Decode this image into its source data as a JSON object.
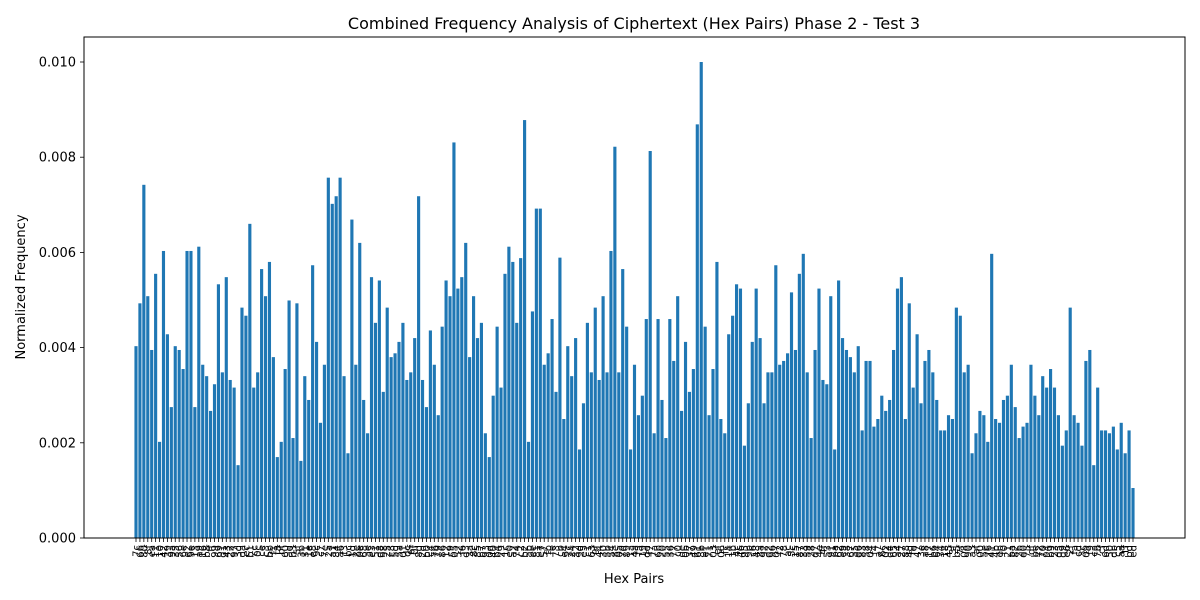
{
  "colors": {
    "bar": "#1f77b4",
    "axis": "#000000",
    "background": "#ffffff"
  },
  "chart_data": {
    "type": "bar",
    "title": "Combined Frequency Analysis of Ciphertext (Hex Pairs) Phase 2 - Test 3",
    "xlabel": "Hex Pairs",
    "ylabel": "Normalized Frequency",
    "ylim": [
      0,
      0.0105
    ],
    "yticks": [
      "0.000",
      "0.002",
      "0.004",
      "0.006",
      "0.008",
      "0.010"
    ],
    "grid": false,
    "legend": "none",
    "categories": [
      "7c",
      "66",
      "80",
      "8f",
      "ea",
      "11",
      "10",
      "42",
      "39",
      "9a",
      "35",
      "56",
      "6e",
      "e2",
      "9e",
      "13",
      "a9",
      "16",
      "b8",
      "ff",
      "99",
      "69",
      "d1",
      "43",
      "22",
      "97",
      "3d",
      "da",
      "ec",
      "b1",
      "cc",
      "0c",
      "ce",
      "c3",
      "bb",
      "f1",
      "f8",
      "bf",
      "60",
      "ad",
      "b3",
      "5f",
      "3b",
      "31",
      "1e",
      "e8",
      "9c",
      "c7",
      "7e",
      "2a",
      "a1",
      "84",
      "a6",
      "f3",
      "bc",
      "1d",
      "2e",
      "0e",
      "68",
      "ae",
      "e3",
      "51",
      "d8",
      "98",
      "25",
      "c8",
      "5d",
      "5a",
      "01",
      "dc",
      "6f",
      "0f",
      "8d",
      "2d",
      "b0",
      "c4",
      "76",
      "79",
      "86",
      "12",
      "c9",
      "05",
      "52",
      "f6",
      "d3",
      "3a",
      "8c",
      "85",
      "b7",
      "93",
      "0d",
      "40",
      "b4",
      "29",
      "1c",
      "e0",
      "a2",
      "74",
      "c2",
      "b2",
      "ab",
      "ee",
      "81",
      "e7",
      "57",
      "fb",
      "fe",
      "73",
      "cb",
      "e4",
      "2c",
      "24",
      "32",
      "9d",
      "e5",
      "c1",
      "63",
      "9f",
      "44",
      "30",
      "5b",
      "54",
      "8e",
      "0a",
      "7d",
      "89",
      "1a",
      "4a",
      "f5",
      "19",
      "dd",
      "f7",
      "7a",
      "6b",
      "20",
      "55",
      "36",
      "77",
      "c0",
      "de",
      "0b",
      "37",
      "49",
      "61",
      "8b",
      "e1",
      "71",
      "03",
      "ef",
      "06",
      "fc",
      "14",
      "1b",
      "4c",
      "46",
      "95",
      "9b",
      "c6",
      "48",
      "8a",
      "92",
      "d2",
      "96",
      "07",
      "f2",
      "78",
      "ac",
      "5c",
      "15",
      "87",
      "33",
      "59",
      "28",
      "d7",
      "4e",
      "4f",
      "53",
      "91",
      "6a",
      "62",
      "e9",
      "38",
      "67",
      "a5",
      "d6",
      "83",
      "58",
      "04",
      "f4",
      "a7",
      "6c",
      "02",
      "d4",
      "65",
      "a4",
      "27",
      "88",
      "4d",
      "fd",
      "47",
      "3e",
      "a8",
      "17",
      "b6",
      "64",
      "34",
      "18",
      "45",
      "3f",
      "b5",
      "7f",
      "08",
      "90",
      "a3",
      "af",
      "00",
      "5e",
      "26",
      "41",
      "4b",
      "eb",
      "f0",
      "21",
      "ba",
      "82",
      "2b",
      "d0",
      "75",
      "df",
      "be",
      "72",
      "70",
      "94",
      "b9",
      "23",
      "d5",
      "d9",
      "e6",
      "2f",
      "fa",
      "cd",
      "3c",
      "09",
      "f9",
      "ca",
      "7b",
      "cf",
      "6d",
      "50",
      "db",
      "c5",
      "aa",
      "1f",
      "bd",
      "ed"
    ],
    "values": [
      0.00403,
      0.00493,
      0.00742,
      0.00508,
      0.00395,
      0.00555,
      0.00202,
      0.00603,
      0.00428,
      0.00275,
      0.00403,
      0.00395,
      0.00355,
      0.00603,
      0.00603,
      0.00275,
      0.00612,
      0.00364,
      0.0034,
      0.00267,
      0.00323,
      0.00533,
      0.00348,
      0.00548,
      0.00332,
      0.00316,
      0.00153,
      0.00484,
      0.00467,
      0.0066,
      0.00316,
      0.00348,
      0.00565,
      0.00508,
      0.0058,
      0.0038,
      0.0017,
      0.00202,
      0.00355,
      0.00499,
      0.0021,
      0.00493,
      0.00162,
      0.0034,
      0.0029,
      0.00573,
      0.00412,
      0.00242,
      0.00364,
      0.00757,
      0.00702,
      0.00718,
      0.00757,
      0.0034,
      0.00178,
      0.00669,
      0.00364,
      0.0062,
      0.0029,
      0.0022,
      0.00548,
      0.00452,
      0.00541,
      0.00307,
      0.00484,
      0.0038,
      0.00388,
      0.00412,
      0.00452,
      0.00332,
      0.00348,
      0.0042,
      0.00718,
      0.00332,
      0.00275,
      0.00436,
      0.00364,
      0.00258,
      0.00444,
      0.00541,
      0.00508,
      0.00831,
      0.00524,
      0.00548,
      0.0062,
      0.0038,
      0.00508,
      0.0042,
      0.00452,
      0.0022,
      0.0017,
      0.00299,
      0.00444,
      0.00316,
      0.00555,
      0.00612,
      0.0058,
      0.00452,
      0.00588,
      0.00878,
      0.00202,
      0.00476,
      0.00692,
      0.00692,
      0.00364,
      0.00388,
      0.0046,
      0.00307,
      0.00589,
      0.0025,
      0.00403,
      0.0034,
      0.0042,
      0.00186,
      0.00283,
      0.00452,
      0.00348,
      0.00484,
      0.00332,
      0.00508,
      0.00348,
      0.00603,
      0.00822,
      0.00348,
      0.00565,
      0.00444,
      0.00186,
      0.00364,
      0.00258,
      0.00299,
      0.0046,
      0.00813,
      0.0022,
      0.0046,
      0.0029,
      0.0021,
      0.0046,
      0.00372,
      0.00508,
      0.00267,
      0.00412,
      0.00307,
      0.00355,
      0.00869,
      0.01,
      0.00444,
      0.00258,
      0.00355,
      0.0058,
      0.0025,
      0.0022,
      0.00428,
      0.00467,
      0.00533,
      0.00524,
      0.00194,
      0.00283,
      0.00412,
      0.00524,
      0.0042,
      0.00283,
      0.00348,
      0.00348,
      0.00573,
      0.00364,
      0.00372,
      0.00388,
      0.00516,
      0.00395,
      0.00555,
      0.00597,
      0.00348,
      0.0021,
      0.00395,
      0.00524,
      0.00332,
      0.00323,
      0.00508,
      0.00186,
      0.00541,
      0.0042,
      0.00395,
      0.0038,
      0.00348,
      0.00403,
      0.00226,
      0.00372,
      0.00372,
      0.00234,
      0.0025,
      0.00299,
      0.00267,
      0.0029,
      0.00395,
      0.00524,
      0.00548,
      0.0025,
      0.00493,
      0.00316,
      0.00428,
      0.00283,
      0.00372,
      0.00395,
      0.00348,
      0.0029,
      0.00226,
      0.00226,
      0.00258,
      0.0025,
      0.00484,
      0.00467,
      0.00348,
      0.00364,
      0.00178,
      0.0022,
      0.00267,
      0.00258,
      0.00202,
      0.00597,
      0.0025,
      0.00242,
      0.0029,
      0.00299,
      0.00364,
      0.00275,
      0.0021,
      0.00234,
      0.00242,
      0.00364,
      0.00299,
      0.00258,
      0.0034,
      0.00316,
      0.00355,
      0.00316,
      0.00258,
      0.00194,
      0.00226,
      0.00484,
      0.00258,
      0.00242,
      0.00194,
      0.00372,
      0.00395,
      0.00153,
      0.00316,
      0.00226,
      0.00226,
      0.0022,
      0.00234,
      0.00186,
      0.00242,
      0.00178,
      0.00226,
      0.00105
    ]
  }
}
